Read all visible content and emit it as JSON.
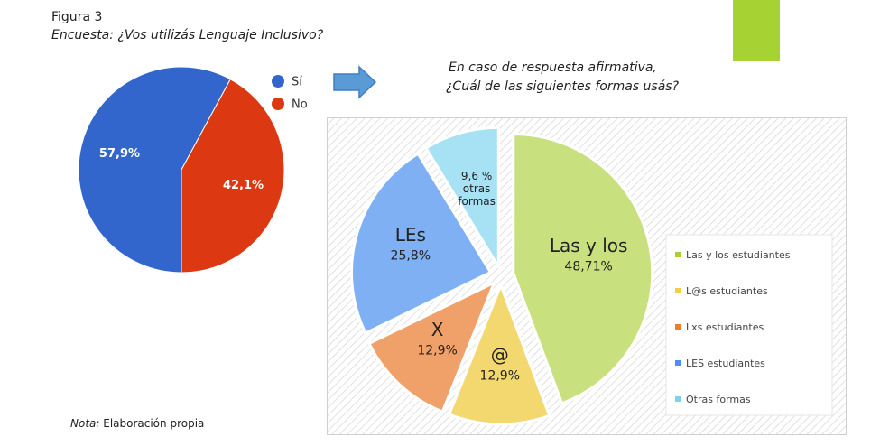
{
  "figure": {
    "label": "Figura 3",
    "title": "Encuesta: ¿Vos  utilizás Lenguaje Inclusivo?",
    "note_label": "Nota:",
    "note_text": " Elaboración propia"
  },
  "colors": {
    "accent": "#a6d234",
    "arrow": "#5b9bd5"
  },
  "chart_data": [
    {
      "type": "pie",
      "title": "",
      "slices": [
        {
          "label": "Sí",
          "value": 57.9,
          "display": "57,9%",
          "color": "#3366cc"
        },
        {
          "label": "No",
          "value": 42.1,
          "display": "42,1%",
          "color": "#dc3912"
        }
      ],
      "legend_position": "right"
    },
    {
      "type": "pie",
      "title_lines": [
        "En caso de respuesta afirmativa,",
        "¿Cuál de las siguientes formas usás?"
      ],
      "slices": [
        {
          "legend": "Las y los estudiantes",
          "label_lines": [
            "Las y los",
            "48,71%"
          ],
          "value": 48.71,
          "color": "#a6d234",
          "fill": "#c9e07e"
        },
        {
          "legend": "L@s estudiantes",
          "label_lines": [
            "@",
            "12,9%"
          ],
          "value": 12.9,
          "color": "#f2cd48",
          "fill": "#f3d870"
        },
        {
          "legend": "Lxs estudiantes",
          "label_lines": [
            "X",
            "12,9%"
          ],
          "value": 12.9,
          "color": "#ed7d31",
          "fill": "#f0a069"
        },
        {
          "legend": "LES estudiantes",
          "label_lines": [
            "LEs",
            "25,8%"
          ],
          "value": 25.8,
          "color": "#4f8df2",
          "fill": "#7fb0f4"
        },
        {
          "legend": "Otras formas",
          "label_lines": [
            "9,6 %",
            "otras",
            "formas"
          ],
          "value": 9.6,
          "color": "#7dd3ef",
          "fill": "#a6e1f4"
        }
      ],
      "legend_position": "right"
    }
  ]
}
